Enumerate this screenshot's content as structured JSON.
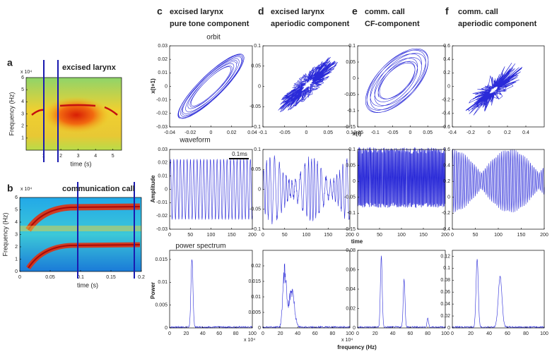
{
  "panels": [
    {
      "label": "a",
      "title": "excised larynx",
      "multiplier": "x 10⁴",
      "ylabel": "Frequency (Hz)",
      "xlabel": "time (s)",
      "xlim": [
        0,
        5.5
      ],
      "ylim": [
        0,
        6
      ],
      "xticks": [
        1,
        2,
        3,
        4,
        5
      ],
      "yticks": [
        1,
        2,
        3,
        4,
        5,
        6
      ]
    },
    {
      "label": "b",
      "title": "communication call",
      "multiplier": "x 10⁴",
      "ylabel": "Frequency (Hz)",
      "xlabel": "time (s)",
      "xlim": [
        0,
        0.2
      ],
      "ylim": [
        0,
        6
      ],
      "xticks": [
        0,
        0.05,
        0.1,
        0.15,
        0.2
      ],
      "yticks": [
        0,
        1,
        2,
        3,
        4,
        5,
        6
      ]
    }
  ],
  "columns": [
    {
      "label": "c",
      "title": [
        "excised larynx",
        "pure tone component"
      ],
      "orbit": {
        "xlim": [
          -0.04,
          0.04
        ],
        "ylim": [
          -0.03,
          0.03
        ],
        "xticks": [
          -0.04,
          -0.02,
          0,
          0.02,
          0.04
        ],
        "yticks": [
          -0.03,
          -0.02,
          -0.01,
          0,
          0.01,
          0.02,
          0.03
        ]
      },
      "waveform": {
        "xlim": [
          0,
          200
        ],
        "ylim": [
          -0.03,
          0.03
        ],
        "xticks": [
          0,
          50,
          100,
          150,
          200
        ],
        "yticks": [
          -0.03,
          -0.02,
          -0.01,
          0,
          0.01,
          0.02,
          0.03
        ]
      },
      "spectrum": {
        "xlim": [
          0,
          100
        ],
        "ylim": [
          0,
          0.017
        ],
        "xticks": [
          0,
          20,
          40,
          60,
          80,
          100
        ],
        "yticks": [
          0,
          0.005,
          0.01,
          0.015
        ],
        "multiplier": "x 10⁴"
      }
    },
    {
      "label": "d",
      "title": [
        "excised larynx",
        "aperiodic component"
      ],
      "orbit": {
        "xlim": [
          -0.1,
          0.1
        ],
        "ylim": [
          -0.1,
          0.1
        ],
        "xticks": [
          -0.1,
          -0.05,
          0,
          0.05,
          0.1
        ],
        "yticks": [
          -0.1,
          -0.05,
          0,
          0.05,
          0.1
        ]
      },
      "waveform": {
        "xlim": [
          0,
          200
        ],
        "ylim": [
          -0.1,
          0.1
        ],
        "xticks": [
          0,
          50,
          100,
          150,
          200
        ],
        "yticks": [
          -0.1,
          -0.05,
          0,
          0.05,
          0.1
        ]
      },
      "spectrum": {
        "xlim": [
          0,
          100
        ],
        "ylim": [
          0,
          0.025
        ],
        "xticks": [
          0,
          20,
          40,
          60,
          80,
          100
        ],
        "yticks": [
          0,
          0.005,
          0.01,
          0.015,
          0.02
        ],
        "multiplier": "x 10⁴"
      }
    },
    {
      "label": "e",
      "title": [
        "comm. call",
        "CF-component"
      ],
      "orbit": {
        "xlim": [
          -0.15,
          0.1
        ],
        "ylim": [
          -0.15,
          0.1
        ],
        "xticks": [
          -0.15,
          -0.1,
          -0.05,
          0,
          0.05
        ],
        "yticks": [
          -0.15,
          -0.1,
          -0.05,
          0,
          0.05,
          0.1
        ]
      },
      "waveform": {
        "xlim": [
          0,
          200
        ],
        "ylim": [
          -0.15,
          0.1
        ],
        "xticks": [
          0,
          50,
          100,
          150,
          200
        ],
        "yticks": [
          -0.15,
          -0.1,
          -0.05,
          0,
          0.05,
          0.1
        ]
      },
      "spectrum": {
        "xlim": [
          0,
          100
        ],
        "ylim": [
          0,
          0.08
        ],
        "xticks": [
          0,
          20,
          40,
          60,
          80,
          100
        ],
        "yticks": [
          0,
          0.02,
          0.04,
          0.06,
          0.08
        ]
      }
    },
    {
      "label": "f",
      "title": [
        "comm. call",
        "aperiodic component"
      ],
      "orbit": {
        "xlim": [
          -0.4,
          0.6
        ],
        "ylim": [
          -0.6,
          0.6
        ],
        "xticks": [
          -0.4,
          -0.2,
          0,
          0.2,
          0.4
        ],
        "yticks": [
          -0.6,
          -0.4,
          -0.2,
          0,
          0.2,
          0.4,
          0.6
        ]
      },
      "waveform": {
        "xlim": [
          0,
          200
        ],
        "ylim": [
          -0.4,
          0.6
        ],
        "xticks": [
          0,
          50,
          100,
          150,
          200
        ],
        "yticks": [
          -0.4,
          -0.2,
          0,
          0.2,
          0.4,
          0.6
        ]
      },
      "spectrum": {
        "xlim": [
          0,
          100
        ],
        "ylim": [
          0,
          0.13
        ],
        "xticks": [
          0,
          20,
          40,
          60,
          80,
          100
        ],
        "yticks": [
          0,
          0.02,
          0.04,
          0.06,
          0.08,
          0.1,
          0.12
        ]
      }
    }
  ],
  "row_titles": {
    "orbit": "orbit",
    "waveform": "waveform",
    "spectrum": "power spectrum"
  },
  "axis_labels": {
    "orbit_y": "x(t+1)",
    "orbit_x": "x(t)",
    "waveform_y": "Amplitude",
    "waveform_x": "time",
    "spectrum_y": "Power",
    "spectrum_x": "frequency (Hz)"
  },
  "scale_bar": "0.1ms"
}
